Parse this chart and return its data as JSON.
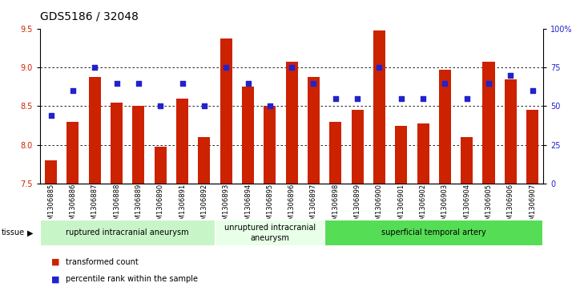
{
  "title": "GDS5186 / 32048",
  "samples": [
    "GSM1306885",
    "GSM1306886",
    "GSM1306887",
    "GSM1306888",
    "GSM1306889",
    "GSM1306890",
    "GSM1306891",
    "GSM1306892",
    "GSM1306893",
    "GSM1306894",
    "GSM1306895",
    "GSM1306896",
    "GSM1306897",
    "GSM1306898",
    "GSM1306899",
    "GSM1306900",
    "GSM1306901",
    "GSM1306902",
    "GSM1306903",
    "GSM1306904",
    "GSM1306905",
    "GSM1306906",
    "GSM1306907"
  ],
  "bar_values": [
    7.8,
    8.3,
    8.88,
    8.55,
    8.5,
    7.98,
    8.6,
    8.1,
    9.38,
    8.75,
    8.5,
    9.08,
    8.88,
    8.3,
    8.45,
    9.48,
    8.25,
    8.28,
    8.97,
    8.1,
    9.08,
    8.85,
    8.45
  ],
  "percentile_values": [
    44,
    60,
    75,
    65,
    65,
    50,
    65,
    50,
    75,
    65,
    50,
    75,
    65,
    55,
    55,
    75,
    55,
    55,
    65,
    55,
    65,
    70,
    60
  ],
  "groups": [
    {
      "label": "ruptured intracranial aneurysm",
      "start": 0,
      "end": 8
    },
    {
      "label": "unruptured intracranial\naneurysm",
      "start": 8,
      "end": 13
    },
    {
      "label": "superficial temporal artery",
      "start": 13,
      "end": 23
    }
  ],
  "group_colors": [
    "#c8f5c8",
    "#e8ffe8",
    "#55dd55"
  ],
  "bar_color": "#cc2200",
  "percentile_color": "#2222cc",
  "ylim_left": [
    7.5,
    9.5
  ],
  "ylim_right": [
    0,
    100
  ],
  "yticks_left": [
    7.5,
    8.0,
    8.5,
    9.0,
    9.5
  ],
  "yticks_right": [
    0,
    25,
    50,
    75,
    100
  ],
  "ytick_labels_right": [
    "0",
    "25",
    "50",
    "75",
    "100%"
  ],
  "grid_values": [
    8.0,
    8.5,
    9.0
  ],
  "plot_bg_color": "#ffffff",
  "legend_bar_label": "transformed count",
  "legend_dot_label": "percentile rank within the sample",
  "title_fontsize": 10,
  "tick_fontsize": 7,
  "label_fontsize": 6,
  "group_fontsize": 7,
  "bar_width": 0.55
}
